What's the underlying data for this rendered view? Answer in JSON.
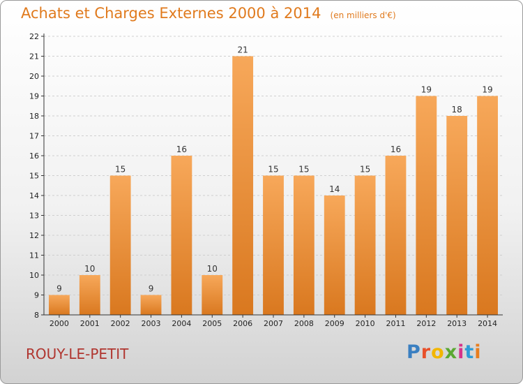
{
  "header": {
    "title": "Achats et Charges Externes 2000 à 2014",
    "unit": "(en milliers d'€)"
  },
  "footer": {
    "place": "ROUY-LE-PETIT",
    "logo_letters": [
      "P",
      "r",
      "o",
      "x",
      "i",
      "t",
      "i"
    ],
    "logo_colors": [
      "#3a7fc1",
      "#e8502a",
      "#f2b600",
      "#5aa832",
      "#d6338a",
      "#2f9bd6",
      "#e87d1e"
    ]
  },
  "colors": {
    "bar_top": "#f7a85a",
    "bar_bottom": "#d9781f",
    "title": "#e07a1d",
    "place": "#b0352f"
  },
  "chart_data": {
    "type": "bar",
    "title": "Achats et Charges Externes 2000 à 2014",
    "subtitle": "(en milliers d'€)",
    "xlabel": "",
    "ylabel": "",
    "categories": [
      "2000",
      "2001",
      "2002",
      "2003",
      "2004",
      "2005",
      "2006",
      "2007",
      "2008",
      "2009",
      "2010",
      "2011",
      "2012",
      "2013",
      "2014"
    ],
    "values": [
      9,
      10,
      15,
      9,
      16,
      10,
      21,
      15,
      15,
      14,
      15,
      16,
      19,
      18,
      19
    ],
    "ylim": [
      8,
      22
    ],
    "yticks": [
      8,
      9,
      10,
      11,
      12,
      13,
      14,
      15,
      16,
      17,
      18,
      19,
      20,
      21,
      22
    ],
    "grid": true,
    "legend": "none"
  }
}
